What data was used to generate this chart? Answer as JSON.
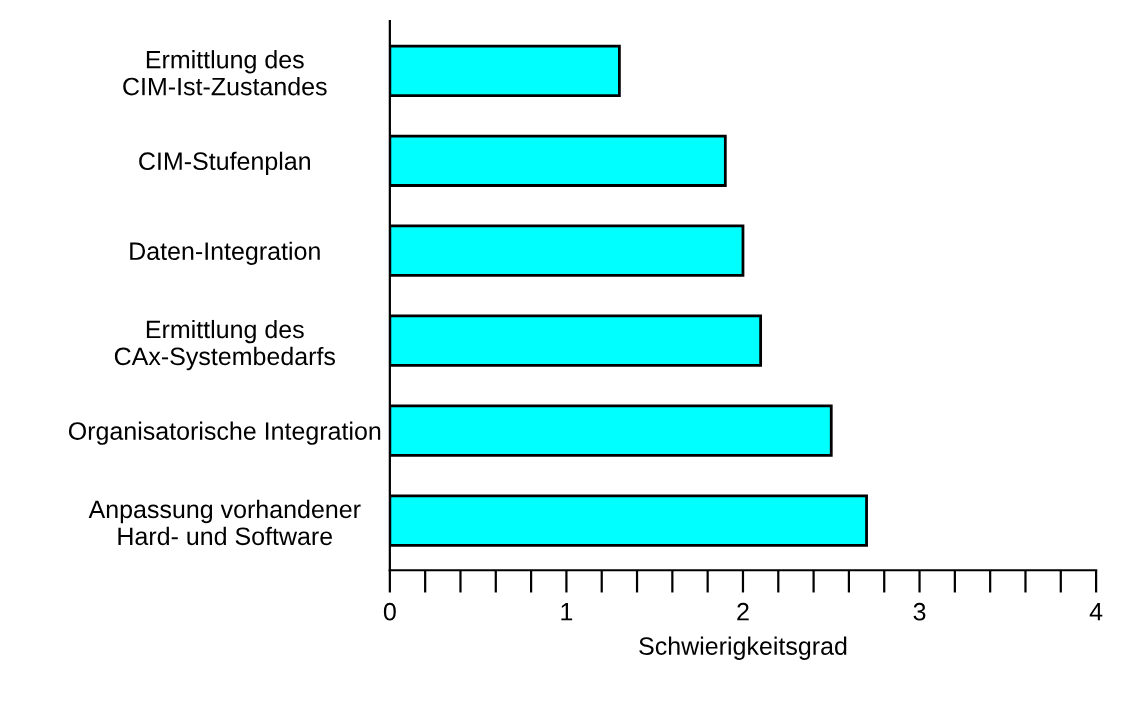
{
  "chart_data": {
    "type": "bar",
    "orientation": "horizontal",
    "xlabel": "Schwierigkeitsgrad",
    "categories": [
      "Ermittlung des\nCIM-Ist-Zustandes",
      "CIM-Stufenplan",
      "Daten-Integration",
      "Ermittlung des\nCAx-Systembedarfs",
      "Organisatorische Integration",
      "Anpassung vorhandener\nHard- und Software"
    ],
    "values": [
      1.3,
      1.9,
      2.0,
      2.1,
      2.5,
      2.7
    ],
    "color": "#00ffff",
    "xlim": [
      0,
      4
    ],
    "xticks": [
      0,
      {
        "value": 0.2,
        "label": null
      },
      {
        "value": 0.4,
        "label": null
      },
      {
        "value": 0.6,
        "label": null
      },
      {
        "value": 0.8,
        "label": null
      },
      1,
      {
        "value": 1.2,
        "label": null
      },
      {
        "value": 1.4,
        "label": null
      },
      {
        "value": 1.6,
        "label": null
      },
      {
        "value": 1.8,
        "label": null
      },
      2,
      {
        "value": 2.2,
        "label": null
      },
      {
        "value": 2.4,
        "label": null
      },
      {
        "value": 2.6,
        "label": null
      },
      {
        "value": 2.8,
        "label": null
      },
      3,
      {
        "value": 3.2,
        "label": null
      },
      {
        "value": 3.4,
        "label": null
      },
      {
        "value": 3.6,
        "label": null
      },
      {
        "value": 3.8,
        "label": null
      },
      4
    ],
    "grid": false
  }
}
